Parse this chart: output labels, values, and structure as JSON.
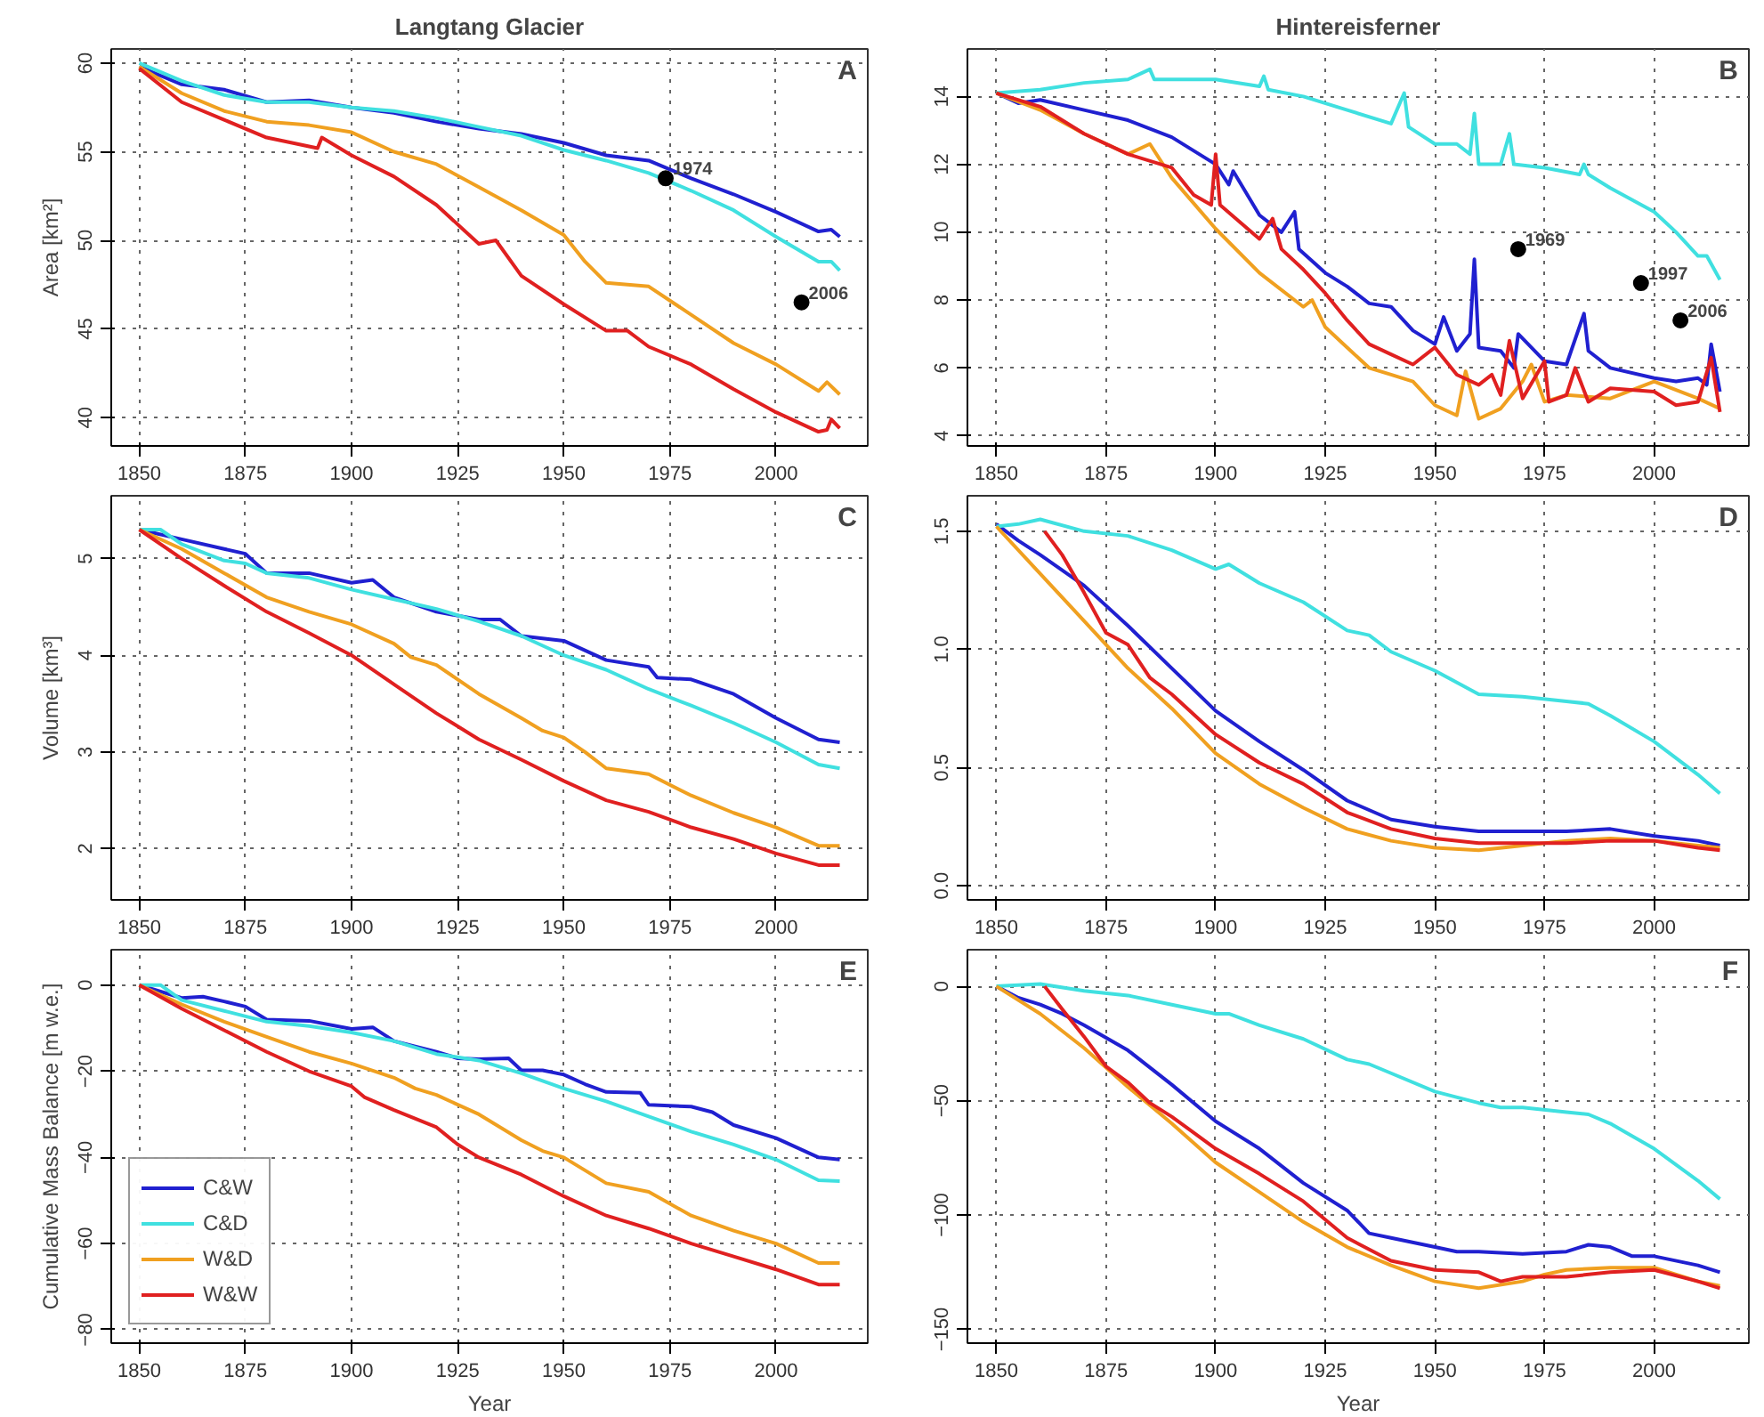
{
  "chart_data": [
    {
      "type": "line",
      "title": "Langtang Glacier",
      "ylabel": "Area [km²]",
      "xlim": [
        1843.4,
        2021.6
      ],
      "ylim": [
        38.4,
        60.8
      ],
      "xticks": [
        1850,
        1875,
        1900,
        1925,
        1950,
        1975,
        2000
      ],
      "yticks": [
        40,
        45,
        50,
        55,
        60
      ],
      "grid": true,
      "legend": false,
      "line_style": "solid",
      "marker": "none",
      "annotations": [
        "A",
        {
          "text": "1974",
          "x": 1974,
          "y": 53.5
        },
        {
          "text": "2006",
          "x": 2006,
          "y": 46.5
        }
      ],
      "series": [
        {
          "color": "#2020d0",
          "x": [
            1850,
            1860,
            1870,
            1880,
            1890,
            1900,
            1910,
            1920,
            1930,
            1940,
            1950,
            1960,
            1970,
            1975,
            1980,
            1990,
            2000,
            2010,
            2013,
            2015
          ],
          "values": [
            59.8,
            58.8,
            58.5,
            57.8,
            57.9,
            57.5,
            57.2,
            56.7,
            56.3,
            56.0,
            55.5,
            54.8,
            54.5,
            54.0,
            53.5,
            52.6,
            51.6,
            50.5,
            50.6,
            50.2
          ]
        },
        {
          "color": "#40e0e0",
          "x": [
            1850,
            1860,
            1870,
            1880,
            1890,
            1900,
            1910,
            1920,
            1930,
            1940,
            1950,
            1960,
            1970,
            1980,
            1990,
            2000,
            2010,
            2013,
            2015
          ],
          "values": [
            60.0,
            59.0,
            58.2,
            57.8,
            57.8,
            57.5,
            57.3,
            56.9,
            56.4,
            55.9,
            55.1,
            54.5,
            53.8,
            52.8,
            51.7,
            50.2,
            48.8,
            48.8,
            48.3
          ]
        },
        {
          "color": "#f0a020",
          "x": [
            1850,
            1860,
            1870,
            1880,
            1890,
            1900,
            1910,
            1920,
            1930,
            1940,
            1950,
            1955,
            1960,
            1970,
            1980,
            1990,
            2000,
            2010,
            2012,
            2015
          ],
          "values": [
            59.8,
            58.3,
            57.3,
            56.7,
            56.5,
            56.1,
            55.0,
            54.3,
            53.0,
            51.7,
            50.3,
            48.8,
            47.6,
            47.4,
            45.8,
            44.2,
            43.0,
            41.5,
            42.0,
            41.3
          ]
        },
        {
          "color": "#e02020",
          "x": [
            1850,
            1860,
            1870,
            1880,
            1892,
            1893,
            1900,
            1910,
            1920,
            1930,
            1934,
            1940,
            1950,
            1960,
            1965,
            1970,
            1980,
            1990,
            2000,
            2010,
            2012,
            2013,
            2015
          ],
          "values": [
            59.7,
            57.8,
            56.8,
            55.8,
            55.2,
            55.8,
            54.8,
            53.6,
            52.0,
            49.8,
            50.0,
            48.0,
            46.4,
            44.9,
            44.9,
            44.0,
            43.0,
            41.6,
            40.3,
            39.2,
            39.3,
            39.9,
            39.4
          ]
        }
      ]
    },
    {
      "type": "line",
      "title": "Hintereisferner",
      "xlim": [
        1843.4,
        2021.6
      ],
      "ylim": [
        3.7,
        15.4
      ],
      "xticks": [
        1850,
        1875,
        1900,
        1925,
        1950,
        1975,
        2000
      ],
      "yticks": [
        4,
        6,
        8,
        10,
        12,
        14
      ],
      "grid": true,
      "legend": false,
      "line_style": "solid",
      "marker": "none",
      "annotations": [
        "B",
        {
          "text": "1969",
          "x": 1969,
          "y": 9.5
        },
        {
          "text": "1997",
          "x": 1997,
          "y": 8.5
        },
        {
          "text": "2006",
          "x": 2006,
          "y": 7.4
        }
      ],
      "series": [
        {
          "color": "#2020d0",
          "x": [
            1850,
            1855,
            1860,
            1870,
            1880,
            1890,
            1895,
            1900,
            1903,
            1904,
            1910,
            1915,
            1918,
            1919,
            1925,
            1930,
            1935,
            1940,
            1945,
            1950,
            1952,
            1955,
            1958,
            1959,
            1960,
            1965,
            1968,
            1969,
            1975,
            1980,
            1984,
            1985,
            1990,
            2000,
            2005,
            2010,
            2012,
            2013,
            2015
          ],
          "values": [
            14.1,
            13.8,
            13.9,
            13.6,
            13.3,
            12.8,
            12.4,
            12.0,
            11.4,
            11.8,
            10.5,
            10.0,
            10.6,
            9.5,
            8.8,
            8.4,
            7.9,
            7.8,
            7.1,
            6.7,
            7.5,
            6.5,
            7.0,
            9.2,
            6.6,
            6.5,
            6.0,
            7.0,
            6.2,
            6.1,
            7.6,
            6.5,
            6.0,
            5.7,
            5.6,
            5.7,
            5.5,
            6.7,
            5.3
          ]
        },
        {
          "color": "#40e0e0",
          "x": [
            1850,
            1860,
            1870,
            1880,
            1885,
            1886,
            1900,
            1910,
            1911,
            1912,
            1920,
            1930,
            1940,
            1943,
            1944,
            1950,
            1955,
            1958,
            1959,
            1960,
            1965,
            1967,
            1968,
            1975,
            1983,
            1984,
            1985,
            1990,
            2000,
            2005,
            2010,
            2012,
            2015
          ],
          "values": [
            14.1,
            14.2,
            14.4,
            14.5,
            14.8,
            14.5,
            14.5,
            14.3,
            14.6,
            14.2,
            14.0,
            13.6,
            13.2,
            14.1,
            13.1,
            12.6,
            12.6,
            12.3,
            13.5,
            12.0,
            12.0,
            12.9,
            12.0,
            11.9,
            11.7,
            12.0,
            11.7,
            11.3,
            10.6,
            10.0,
            9.3,
            9.3,
            8.6
          ]
        },
        {
          "color": "#f0a020",
          "x": [
            1850,
            1860,
            1870,
            1880,
            1885,
            1890,
            1900,
            1910,
            1920,
            1922,
            1925,
            1930,
            1935,
            1940,
            1945,
            1950,
            1955,
            1957,
            1960,
            1965,
            1970,
            1972,
            1975,
            1980,
            1990,
            2000,
            2010,
            2015
          ],
          "values": [
            14.1,
            13.6,
            12.9,
            12.3,
            12.6,
            11.6,
            10.1,
            8.8,
            7.8,
            8.0,
            7.2,
            6.6,
            6.0,
            5.8,
            5.6,
            4.9,
            4.6,
            5.9,
            4.5,
            4.8,
            5.6,
            6.1,
            5.0,
            5.2,
            5.1,
            5.6,
            5.1,
            4.8
          ]
        },
        {
          "color": "#e02020",
          "x": [
            1850,
            1860,
            1870,
            1880,
            1890,
            1895,
            1899,
            1900,
            1901,
            1910,
            1913,
            1915,
            1920,
            1925,
            1930,
            1935,
            1940,
            1945,
            1950,
            1955,
            1960,
            1963,
            1965,
            1967,
            1970,
            1975,
            1976,
            1980,
            1982,
            1985,
            1990,
            2000,
            2005,
            2010,
            2013,
            2015
          ],
          "values": [
            14.1,
            13.7,
            12.9,
            12.3,
            11.9,
            11.1,
            10.8,
            12.3,
            10.8,
            9.8,
            10.4,
            9.5,
            8.9,
            8.2,
            7.4,
            6.7,
            6.4,
            6.1,
            6.6,
            5.8,
            5.5,
            5.8,
            5.2,
            6.8,
            5.1,
            6.2,
            5.0,
            5.2,
            6.0,
            5.0,
            5.4,
            5.3,
            4.9,
            5.0,
            6.3,
            4.7
          ]
        }
      ]
    },
    {
      "type": "line",
      "ylabel": "Volume [km³]",
      "xlim": [
        1843.4,
        2021.6
      ],
      "ylim": [
        1.47,
        5.65
      ],
      "xticks": [
        1850,
        1875,
        1900,
        1925,
        1950,
        1975,
        2000
      ],
      "yticks": [
        2,
        3,
        4,
        5
      ],
      "grid": true,
      "legend": false,
      "line_style": "solid",
      "marker": "none",
      "annotations": [
        "C"
      ],
      "series": [
        {
          "color": "#2020d0",
          "x": [
            1850,
            1860,
            1870,
            1875,
            1880,
            1890,
            1900,
            1905,
            1910,
            1920,
            1930,
            1935,
            1940,
            1950,
            1960,
            1970,
            1972,
            1980,
            1990,
            2000,
            2010,
            2015
          ],
          "values": [
            5.3,
            5.2,
            5.1,
            5.05,
            4.85,
            4.85,
            4.75,
            4.78,
            4.6,
            4.45,
            4.37,
            4.37,
            4.2,
            4.15,
            3.95,
            3.88,
            3.77,
            3.75,
            3.6,
            3.35,
            3.13,
            3.1
          ]
        },
        {
          "color": "#40e0e0",
          "x": [
            1850,
            1855,
            1860,
            1870,
            1875,
            1880,
            1890,
            1900,
            1910,
            1920,
            1930,
            1940,
            1950,
            1960,
            1970,
            1980,
            1990,
            2000,
            2010,
            2015
          ],
          "values": [
            5.3,
            5.3,
            5.15,
            4.98,
            4.95,
            4.85,
            4.8,
            4.68,
            4.58,
            4.48,
            4.35,
            4.2,
            4.0,
            3.85,
            3.65,
            3.48,
            3.3,
            3.1,
            2.87,
            2.83
          ]
        },
        {
          "color": "#f0a020",
          "x": [
            1850,
            1860,
            1870,
            1880,
            1890,
            1900,
            1910,
            1914,
            1920,
            1930,
            1940,
            1945,
            1950,
            1955,
            1960,
            1970,
            1980,
            1990,
            2000,
            2010,
            2015
          ],
          "values": [
            5.3,
            5.1,
            4.85,
            4.6,
            4.45,
            4.32,
            4.12,
            3.98,
            3.9,
            3.6,
            3.35,
            3.22,
            3.15,
            3.0,
            2.83,
            2.77,
            2.55,
            2.37,
            2.22,
            2.03,
            2.03
          ]
        },
        {
          "color": "#e02020",
          "x": [
            1850,
            1860,
            1870,
            1880,
            1890,
            1900,
            1910,
            1920,
            1930,
            1940,
            1950,
            1960,
            1970,
            1980,
            1990,
            2000,
            2010,
            2015
          ],
          "values": [
            5.3,
            5.0,
            4.72,
            4.45,
            4.23,
            4.0,
            3.7,
            3.4,
            3.13,
            2.92,
            2.7,
            2.5,
            2.38,
            2.22,
            2.1,
            1.95,
            1.83,
            1.83
          ]
        }
      ]
    },
    {
      "type": "line",
      "xlim": [
        1843.4,
        2021.6
      ],
      "ylim": [
        -0.06,
        1.65
      ],
      "xticks": [
        1850,
        1875,
        1900,
        1925,
        1950,
        1975,
        2000
      ],
      "yticks": [
        {
          "value": 0,
          "label": "0.0"
        },
        0.5,
        {
          "value": 1,
          "label": "1.0"
        },
        1.5
      ],
      "grid": true,
      "legend": false,
      "line_style": "solid",
      "marker": "none",
      "annotations": [
        "D"
      ],
      "series": [
        {
          "color": "#2020d0",
          "x": [
            1850,
            1855,
            1860,
            1870,
            1880,
            1890,
            1900,
            1910,
            1920,
            1930,
            1940,
            1950,
            1960,
            1970,
            1980,
            1990,
            2000,
            2010,
            2015
          ],
          "values": [
            1.53,
            1.46,
            1.4,
            1.27,
            1.1,
            0.92,
            0.74,
            0.61,
            0.49,
            0.36,
            0.28,
            0.25,
            0.23,
            0.23,
            0.23,
            0.24,
            0.21,
            0.19,
            0.17
          ]
        },
        {
          "color": "#40e0e0",
          "x": [
            1850,
            1855,
            1860,
            1870,
            1880,
            1890,
            1900,
            1903,
            1910,
            1920,
            1930,
            1935,
            1940,
            1950,
            1955,
            1960,
            1970,
            1980,
            1985,
            1990,
            2000,
            2010,
            2015
          ],
          "values": [
            1.52,
            1.53,
            1.55,
            1.5,
            1.48,
            1.42,
            1.34,
            1.36,
            1.28,
            1.2,
            1.08,
            1.06,
            0.99,
            0.91,
            0.86,
            0.81,
            0.8,
            0.78,
            0.77,
            0.72,
            0.61,
            0.47,
            0.39
          ]
        },
        {
          "color": "#f0a020",
          "x": [
            1850,
            1860,
            1870,
            1880,
            1890,
            1900,
            1910,
            1920,
            1930,
            1940,
            1950,
            1960,
            1970,
            1980,
            1990,
            2000,
            2010,
            2015
          ],
          "values": [
            1.52,
            1.32,
            1.12,
            0.92,
            0.75,
            0.56,
            0.43,
            0.33,
            0.24,
            0.19,
            0.16,
            0.15,
            0.17,
            0.19,
            0.2,
            0.19,
            0.17,
            0.16
          ]
        },
        {
          "color": "#e02020",
          "x": [
            1861,
            1865,
            1870,
            1875,
            1880,
            1885,
            1890,
            1900,
            1910,
            1920,
            1930,
            1940,
            1950,
            1960,
            1970,
            1980,
            1990,
            2000,
            2010,
            2015
          ],
          "values": [
            1.5,
            1.4,
            1.24,
            1.07,
            1.02,
            0.88,
            0.81,
            0.64,
            0.52,
            0.43,
            0.31,
            0.24,
            0.2,
            0.18,
            0.18,
            0.18,
            0.19,
            0.19,
            0.16,
            0.15
          ]
        }
      ]
    },
    {
      "type": "line",
      "xlabel": "Year",
      "ylabel": "Cumulative Mass Balance [m w.e.]",
      "xlim": [
        1843.4,
        2021.6
      ],
      "ylim": [
        -83.1,
        8.2
      ],
      "xticks": [
        1850,
        1875,
        1900,
        1925,
        1950,
        1975,
        2000
      ],
      "yticks": [
        -80,
        -60,
        -40,
        -20,
        0
      ],
      "grid": true,
      "legend": "bottom left",
      "line_style": "solid",
      "marker": "none",
      "annotations": [
        "E"
      ],
      "series": [
        {
          "name": "C&W",
          "color": "#2020d0",
          "x": [
            1850,
            1860,
            1865,
            1870,
            1875,
            1880,
            1890,
            1900,
            1905,
            1910,
            1920,
            1925,
            1930,
            1937,
            1940,
            1945,
            1950,
            1955,
            1960,
            1968,
            1970,
            1980,
            1985,
            1990,
            2000,
            2010,
            2015
          ],
          "values": [
            0,
            -3,
            -2.7,
            -3.8,
            -5,
            -8,
            -8.3,
            -10.2,
            -9.8,
            -13,
            -15.5,
            -17,
            -17.2,
            -17,
            -19.8,
            -19.8,
            -20.8,
            -23,
            -24.8,
            -25,
            -27.8,
            -28.2,
            -29.5,
            -32.5,
            -35.5,
            -40,
            -40.5
          ]
        },
        {
          "name": "C&D",
          "color": "#40e0e0",
          "x": [
            1850,
            1855,
            1860,
            1870,
            1880,
            1890,
            1900,
            1910,
            1920,
            1930,
            1940,
            1950,
            1960,
            1970,
            1980,
            1990,
            2000,
            2010,
            2015
          ],
          "values": [
            0,
            0,
            -3.5,
            -6,
            -8.5,
            -9.5,
            -11,
            -13,
            -16,
            -17.5,
            -20.5,
            -24,
            -27,
            -30.5,
            -34,
            -37,
            -40.5,
            -45.3,
            -45.5
          ]
        },
        {
          "name": "W&D",
          "color": "#f0a020",
          "x": [
            1850,
            1860,
            1870,
            1880,
            1890,
            1900,
            1910,
            1915,
            1920,
            1930,
            1940,
            1945,
            1950,
            1960,
            1970,
            1980,
            1990,
            2000,
            2010,
            2015
          ],
          "values": [
            0,
            -4.5,
            -8.5,
            -12,
            -15.5,
            -18.2,
            -21.5,
            -24,
            -25.5,
            -30,
            -36,
            -38.5,
            -40,
            -46,
            -48,
            -53.5,
            -57,
            -60,
            -64.5,
            -64.5
          ]
        },
        {
          "name": "W&W",
          "color": "#e02020",
          "x": [
            1850,
            1860,
            1870,
            1880,
            1890,
            1900,
            1903,
            1910,
            1920,
            1925,
            1930,
            1940,
            1950,
            1960,
            1970,
            1980,
            1990,
            2000,
            2010,
            2015
          ],
          "values": [
            0,
            -5.5,
            -10.5,
            -15.5,
            -20,
            -23.5,
            -26,
            -29,
            -33,
            -37,
            -40,
            -44,
            -49,
            -53.5,
            -56.5,
            -60,
            -63,
            -66,
            -69.5,
            -69.5
          ]
        }
      ]
    },
    {
      "type": "line",
      "xlabel": "Year",
      "xlim": [
        1843.4,
        2021.6
      ],
      "ylim": [
        -156,
        16
      ],
      "xticks": [
        1850,
        1875,
        1900,
        1925,
        1950,
        1975,
        2000
      ],
      "yticks": [
        -150,
        -100,
        -50,
        0
      ],
      "grid": true,
      "legend": false,
      "line_style": "solid",
      "marker": "none",
      "annotations": [
        "F"
      ],
      "series": [
        {
          "color": "#2020d0",
          "x": [
            1850,
            1855,
            1860,
            1865,
            1870,
            1880,
            1890,
            1900,
            1910,
            1920,
            1930,
            1935,
            1940,
            1950,
            1955,
            1960,
            1970,
            1980,
            1985,
            1990,
            1995,
            2000,
            2010,
            2015
          ],
          "values": [
            0,
            -5,
            -8,
            -12,
            -17,
            -28,
            -43,
            -59,
            -71,
            -86,
            -98,
            -108,
            -110,
            -114,
            -116,
            -116,
            -117,
            -116,
            -113,
            -114,
            -118,
            -118,
            -122,
            -125
          ]
        },
        {
          "color": "#40e0e0",
          "x": [
            1850,
            1860,
            1870,
            1880,
            1890,
            1900,
            1903,
            1910,
            1920,
            1930,
            1935,
            1940,
            1950,
            1960,
            1965,
            1970,
            1980,
            1985,
            1990,
            2000,
            2010,
            2015
          ],
          "values": [
            0,
            1,
            -2,
            -4,
            -8,
            -12,
            -12,
            -17,
            -23,
            -32,
            -34,
            -38,
            -46,
            -51,
            -53,
            -53,
            -55,
            -56,
            -60,
            -71,
            -85,
            -93
          ]
        },
        {
          "color": "#f0a020",
          "x": [
            1850,
            1860,
            1870,
            1880,
            1890,
            1900,
            1910,
            1920,
            1930,
            1940,
            1950,
            1960,
            1970,
            1975,
            1980,
            1990,
            2000,
            2010,
            2015
          ],
          "values": [
            0,
            -12,
            -27,
            -44,
            -60,
            -77,
            -90,
            -103,
            -114,
            -122,
            -129,
            -132,
            -129,
            -126,
            -124,
            -123,
            -123,
            -129,
            -131
          ]
        },
        {
          "color": "#e02020",
          "x": [
            1861,
            1865,
            1870,
            1875,
            1880,
            1885,
            1890,
            1900,
            1910,
            1920,
            1930,
            1940,
            1950,
            1960,
            1965,
            1970,
            1980,
            1990,
            2000,
            2010,
            2015
          ],
          "values": [
            0,
            -10,
            -22,
            -35,
            -42,
            -51,
            -57,
            -71,
            -82,
            -94,
            -110,
            -120,
            -124,
            -125,
            -129,
            -127,
            -127,
            -125,
            -124,
            -129,
            -132
          ]
        }
      ]
    }
  ]
}
